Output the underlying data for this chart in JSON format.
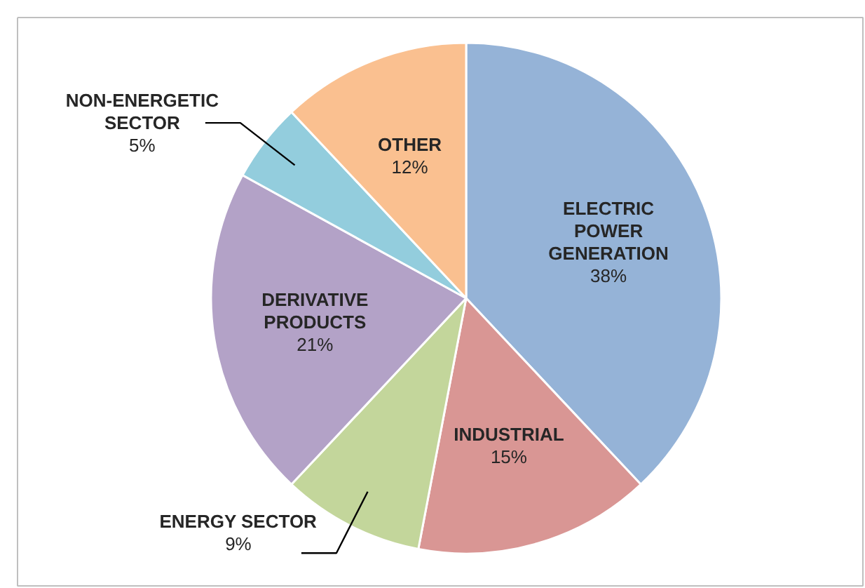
{
  "chart_data": {
    "type": "pie",
    "categories": [
      "ELECTRIC POWER GENERATION",
      "INDUSTRIAL",
      "ENERGY SECTOR",
      "DERIVATIVE PRODUCTS",
      "NON-ENERGETIC SECTOR",
      "OTHER"
    ],
    "values": [
      38,
      15,
      9,
      21,
      5,
      12
    ],
    "colors": [
      "#95b3d7",
      "#d99694",
      "#c3d69b",
      "#b3a2c7",
      "#93cddd",
      "#fac090"
    ],
    "value_labels": [
      "38%",
      "15%",
      "9%",
      "21%",
      "5%",
      "12%"
    ]
  }
}
